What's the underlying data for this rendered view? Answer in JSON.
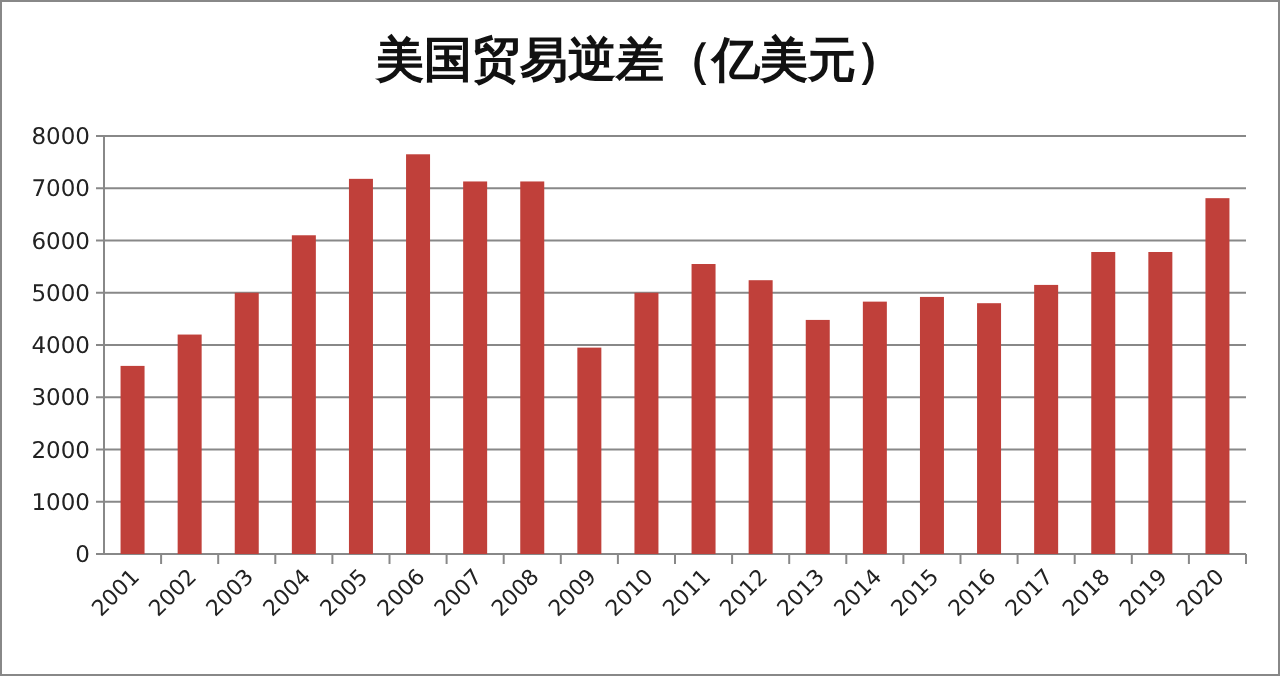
{
  "chart_data": {
    "type": "bar",
    "title": "美国贸易逆差（亿美元）",
    "categories": [
      "2001",
      "2002",
      "2003",
      "2004",
      "2005",
      "2006",
      "2007",
      "2008",
      "2009",
      "2010",
      "2011",
      "2012",
      "2013",
      "2014",
      "2015",
      "2016",
      "2017",
      "2018",
      "2019",
      "2020"
    ],
    "values": [
      3600,
      4200,
      5000,
      6100,
      7180,
      7650,
      7130,
      7130,
      3950,
      5000,
      5550,
      5240,
      4480,
      4830,
      4920,
      4800,
      5150,
      5780,
      5780,
      6810
    ],
    "color": "#c0403a",
    "ylim": [
      0,
      8000
    ],
    "yticks": [
      0,
      1000,
      2000,
      3000,
      4000,
      5000,
      6000,
      7000,
      8000
    ],
    "grid": "y"
  }
}
